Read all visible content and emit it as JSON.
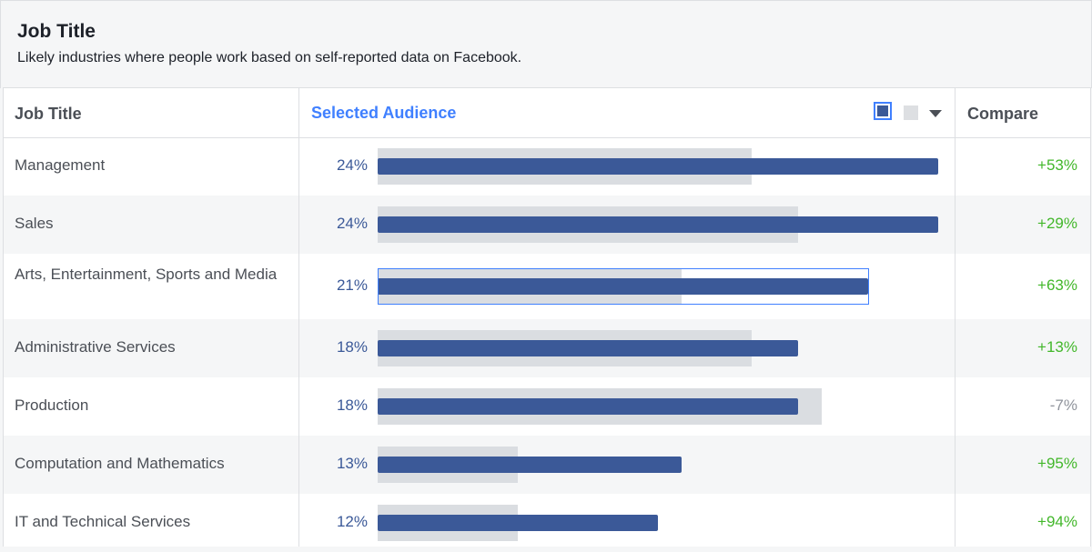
{
  "header": {
    "title": "Job Title",
    "subtitle": "Likely industries where people work based on self-reported data on Facebook."
  },
  "table": {
    "col_job": "Job Title",
    "col_selected": "Selected Audience",
    "col_compare": "Compare",
    "legend": {
      "selected_icon": "selected-audience-swatch",
      "baseline_icon": "baseline-swatch",
      "dropdown_icon": "chevron-down-icon"
    }
  },
  "colors": {
    "selected_bar": "#3b5998",
    "baseline_bar": "#dadde1",
    "positive": "#42b72a",
    "negative": "#90949c",
    "accent": "#4080ff"
  },
  "chart_data": {
    "type": "bar",
    "categories": [
      "Management",
      "Sales",
      "Arts, Entertainment, Sports and Media",
      "Administrative Services",
      "Production",
      "Computation and Mathematics",
      "IT and Technical Services"
    ],
    "series": [
      {
        "name": "Selected Audience",
        "values": [
          24,
          24,
          21,
          18,
          18,
          13,
          12
        ],
        "labels": [
          "24%",
          "24%",
          "21%",
          "18%",
          "18%",
          "13%",
          "12%"
        ]
      },
      {
        "values": [
          16,
          18,
          13,
          16,
          19,
          6,
          6
        ]
      }
    ],
    "compare": [
      "+53%",
      "+29%",
      "+63%",
      "+13%",
      "-7%",
      "+95%",
      "+94%"
    ],
    "compare_sign": [
      "pos",
      "pos",
      "pos",
      "pos",
      "neg",
      "pos",
      "pos"
    ],
    "xlim": [
      0,
      24
    ],
    "focused_row": 2
  }
}
